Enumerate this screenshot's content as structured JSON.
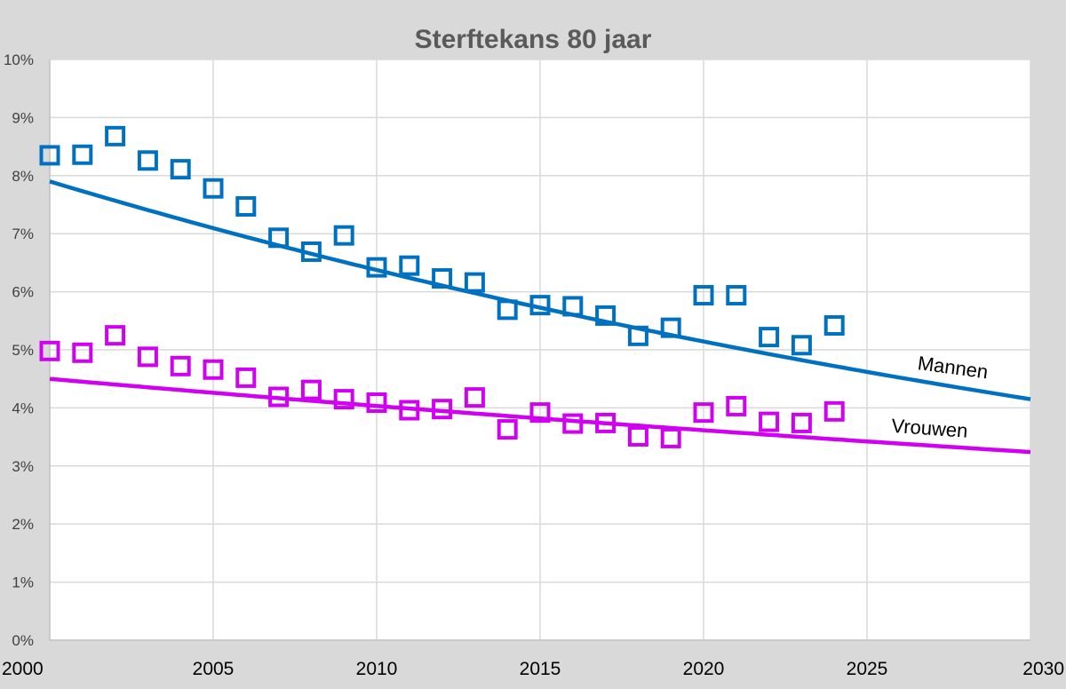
{
  "chart_data": {
    "type": "scatter",
    "title": "Sterftekans 80 jaar",
    "xlabel": "",
    "ylabel": "",
    "xlim": [
      2000,
      2030
    ],
    "ylim": [
      0,
      10
    ],
    "x_ticks": [
      "2000",
      "2005",
      "2010",
      "2015",
      "2020",
      "2025",
      "2030"
    ],
    "y_ticks": [
      "0%",
      "1%",
      "2%",
      "3%",
      "4%",
      "5%",
      "6%",
      "7%",
      "8%",
      "9%",
      "10%"
    ],
    "grid": true,
    "series": [
      {
        "name": "Mannen",
        "label": "Mannen",
        "color": "#0070c0",
        "x": [
          2000,
          2001,
          2002,
          2003,
          2004,
          2005,
          2006,
          2007,
          2008,
          2009,
          2010,
          2011,
          2012,
          2013,
          2014,
          2015,
          2016,
          2017,
          2018,
          2019,
          2020,
          2021,
          2022,
          2023,
          2024
        ],
        "values": [
          8.35,
          8.36,
          8.68,
          8.26,
          8.11,
          7.78,
          7.47,
          6.93,
          6.69,
          6.97,
          6.42,
          6.45,
          6.23,
          6.16,
          5.69,
          5.77,
          5.75,
          5.59,
          5.24,
          5.38,
          5.94,
          5.94,
          5.22,
          5.08,
          5.42
        ],
        "trend": {
          "start": [
            2000,
            7.9
          ],
          "end": [
            2030,
            4.15
          ]
        }
      },
      {
        "name": "Vrouwen",
        "label": "Vrouwen",
        "color": "#d000f0",
        "x": [
          2000,
          2001,
          2002,
          2003,
          2004,
          2005,
          2006,
          2007,
          2008,
          2009,
          2010,
          2011,
          2012,
          2013,
          2014,
          2015,
          2016,
          2017,
          2018,
          2019,
          2020,
          2021,
          2022,
          2023,
          2024
        ],
        "values": [
          4.98,
          4.95,
          5.25,
          4.88,
          4.72,
          4.66,
          4.52,
          4.19,
          4.31,
          4.15,
          4.09,
          3.96,
          3.98,
          4.18,
          3.63,
          3.92,
          3.73,
          3.74,
          3.51,
          3.48,
          3.92,
          4.03,
          3.76,
          3.74,
          3.94
        ],
        "trend": {
          "start": [
            2000,
            4.5
          ],
          "end": [
            2030,
            3.24
          ]
        }
      }
    ]
  }
}
